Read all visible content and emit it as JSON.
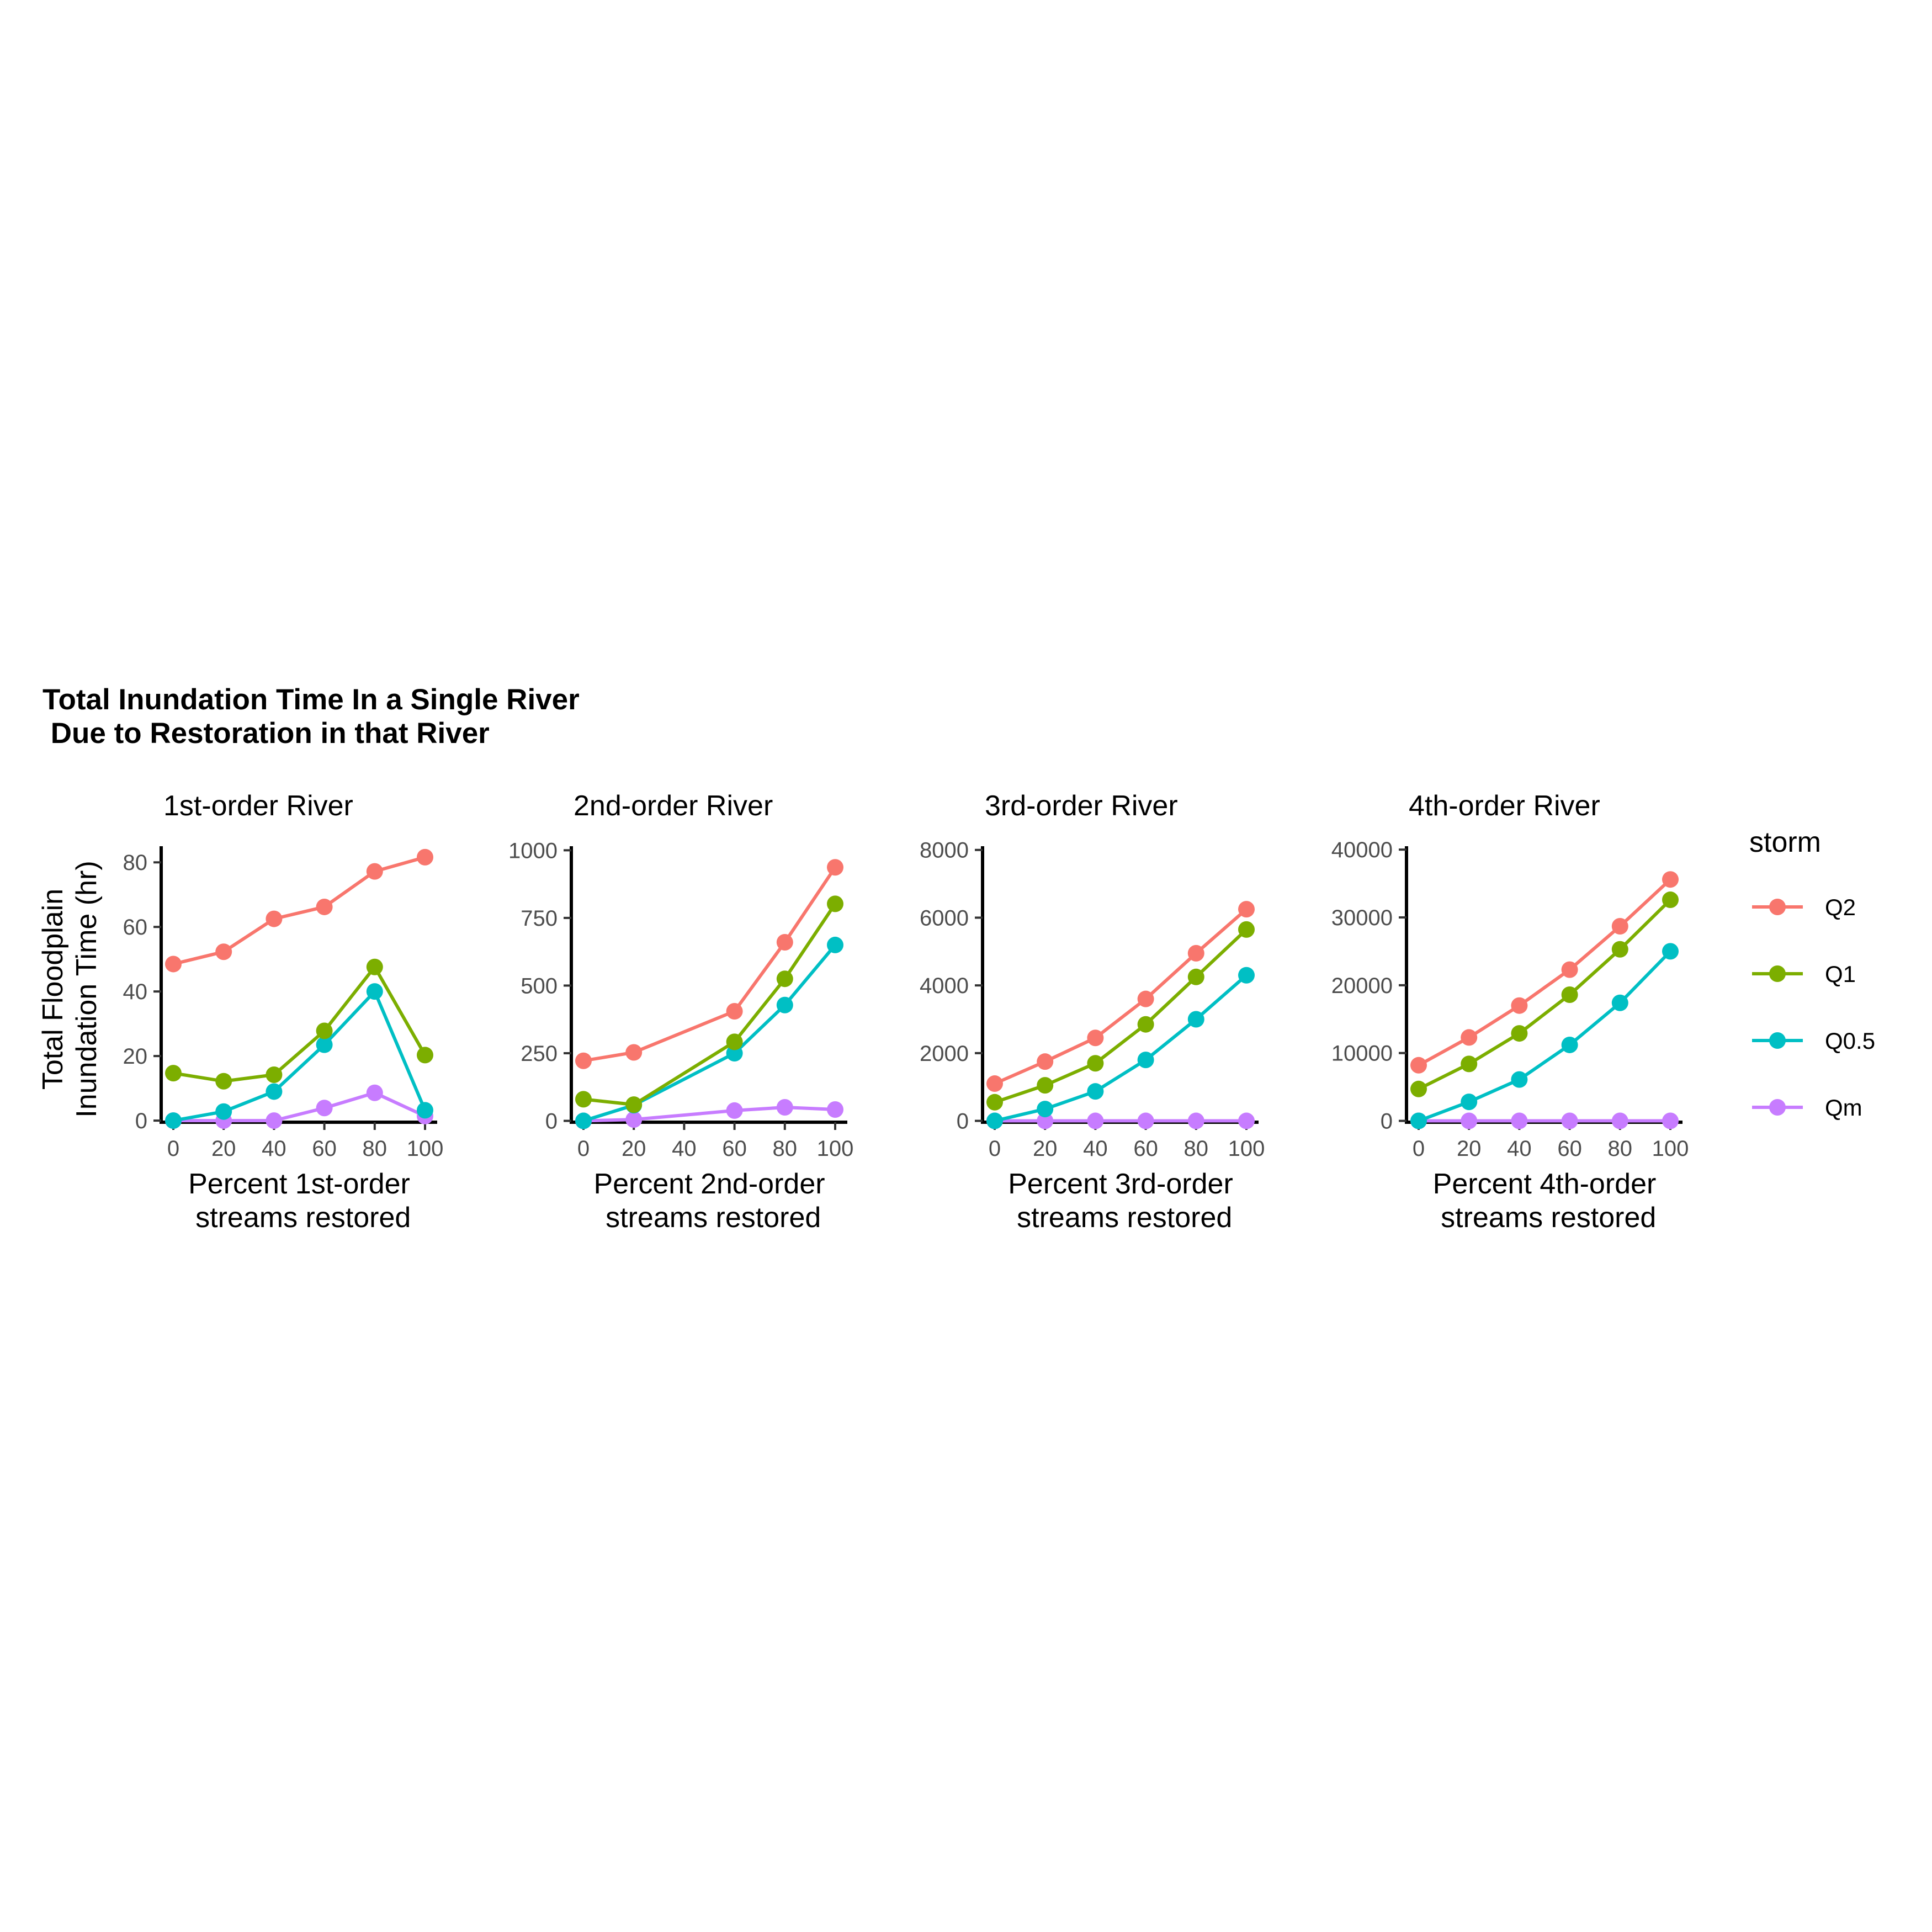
{
  "title_line1": "Total Inundation Time In a Single River",
  "title_line2": " Due to Restoration in that River",
  "y_axis_label_line1": "Total Floodplain",
  "y_axis_label_line2": "Inundation Time (hr)",
  "legend": {
    "title": "storm",
    "position": "right",
    "items": [
      {
        "label": "Q2",
        "color": "#F8766D"
      },
      {
        "label": "Q1",
        "color": "#7CAE00"
      },
      {
        "label": "Q0.5",
        "color": "#00BFC4"
      },
      {
        "label": "Qm",
        "color": "#C77CFF"
      }
    ]
  },
  "chart_data": [
    {
      "type": "line",
      "title": "1st-order River",
      "xlabel_line1": "Percent 1st-order",
      "xlabel_line2": " streams restored",
      "x": [
        0,
        20,
        40,
        60,
        80,
        100
      ],
      "xticks": [
        "0",
        "20",
        "40",
        "60",
        "80",
        "100"
      ],
      "yticks": [
        "0",
        "20",
        "40",
        "60",
        "80"
      ],
      "ylim": [
        -0.5,
        85
      ],
      "series": [
        {
          "name": "Q2",
          "values": [
            48.5,
            52.3,
            62.5,
            66.2,
            77.2,
            81.6
          ]
        },
        {
          "name": "Q1",
          "values": [
            14.7,
            12.2,
            14.2,
            27.8,
            47.6,
            20.3
          ]
        },
        {
          "name": "Q0.5",
          "values": [
            0,
            2.8,
            9.0,
            23.5,
            40.0,
            3.2
          ]
        },
        {
          "name": "Qm",
          "values": [
            0,
            0,
            0,
            3.9,
            8.6,
            1.4
          ]
        }
      ]
    },
    {
      "type": "line",
      "title": "2nd-order River",
      "xlabel_line1": "Percent 2nd-order",
      "xlabel_line2": " streams restored",
      "x": [
        0,
        20,
        60,
        80,
        100
      ],
      "xticks": [
        "0",
        "20",
        "40",
        "60",
        "80",
        "100"
      ],
      "yticks": [
        "0",
        "250",
        "500",
        "750",
        "1000"
      ],
      "ylim": [
        -5,
        1015
      ],
      "series": [
        {
          "name": "Q2",
          "values": [
            222,
            253,
            405,
            660,
            937
          ]
        },
        {
          "name": "Q1",
          "values": [
            80,
            60,
            292,
            525,
            802
          ]
        },
        {
          "name": "Q0.5",
          "values": [
            0,
            58,
            250,
            428,
            650
          ]
        },
        {
          "name": "Qm",
          "values": [
            0,
            5,
            38,
            50,
            42
          ]
        }
      ]
    },
    {
      "type": "line",
      "title": "3rd-order River",
      "xlabel_line1": "Percent 3rd-order",
      "xlabel_line2": " streams restored",
      "x": [
        0,
        20,
        40,
        60,
        80,
        100
      ],
      "xticks": [
        "0",
        "20",
        "40",
        "60",
        "80",
        "100"
      ],
      "yticks": [
        "0",
        "2000",
        "4000",
        "6000",
        "8000"
      ],
      "ylim": [
        -40,
        8110
      ],
      "series": [
        {
          "name": "Q2",
          "values": [
            1100,
            1750,
            2450,
            3600,
            4950,
            6250
          ]
        },
        {
          "name": "Q1",
          "values": [
            550,
            1050,
            1700,
            2850,
            4250,
            5650
          ]
        },
        {
          "name": "Q0.5",
          "values": [
            0,
            350,
            870,
            1800,
            3000,
            4300
          ]
        },
        {
          "name": "Qm",
          "values": [
            0,
            0,
            0,
            0,
            0,
            0
          ]
        }
      ]
    },
    {
      "type": "line",
      "title": "4th-order River",
      "xlabel_line1": "Percent 4th-order",
      "xlabel_line2": " streams restored",
      "x": [
        0,
        20,
        40,
        60,
        80,
        100
      ],
      "xticks": [
        "0",
        "20",
        "40",
        "60",
        "80",
        "100"
      ],
      "yticks": [
        "0",
        "10000",
        "20000",
        "30000",
        "40000"
      ],
      "ylim": [
        -200,
        40500
      ],
      "series": [
        {
          "name": "Q2",
          "values": [
            8200,
            12300,
            17000,
            22300,
            28700,
            35600
          ]
        },
        {
          "name": "Q1",
          "values": [
            4700,
            8400,
            12900,
            18600,
            25300,
            32600
          ]
        },
        {
          "name": "Q0.5",
          "values": [
            0,
            2800,
            6100,
            11200,
            17400,
            25000
          ]
        },
        {
          "name": "Qm",
          "values": [
            0,
            0,
            0,
            0,
            0,
            0
          ]
        }
      ]
    }
  ]
}
